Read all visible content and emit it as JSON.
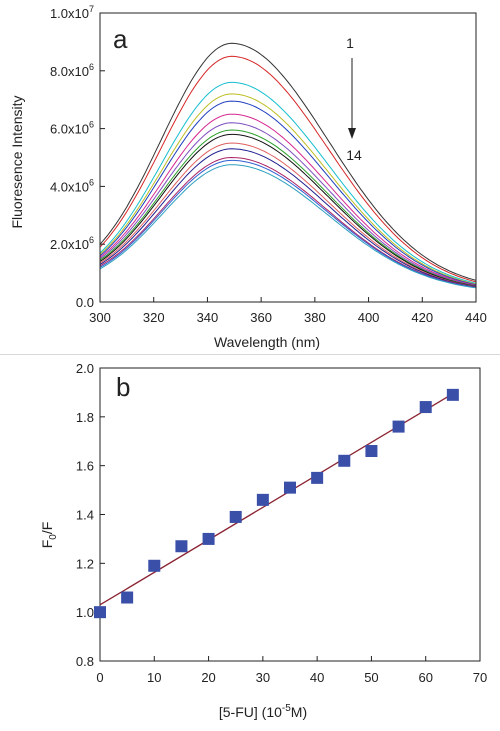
{
  "chart_data": [
    {
      "panel_label": "a",
      "type": "line",
      "xlabel": "Wavelength (nm)",
      "ylabel": "Fluoresence Intensity",
      "xlim": [
        300,
        440
      ],
      "ylim": [
        0,
        10000000
      ],
      "xticks": [
        300,
        320,
        340,
        360,
        380,
        400,
        420,
        440
      ],
      "yticks": [
        {
          "value": 0,
          "mant": "0.0",
          "exp": ""
        },
        {
          "value": 2000000,
          "mant": "2.0x10",
          "exp": "6"
        },
        {
          "value": 4000000,
          "mant": "4.0x10",
          "exp": "6"
        },
        {
          "value": 6000000,
          "mant": "6.0x10",
          "exp": "6"
        },
        {
          "value": 8000000,
          "mant": "8.0x10",
          "exp": "6"
        },
        {
          "value": 10000000,
          "mant": "1.0x10",
          "exp": "7"
        }
      ],
      "annotation_start": "1",
      "annotation_end": "14",
      "peak_wavelength": 349,
      "series": [
        {
          "color": "#333333",
          "peak": 8950000,
          "end": 750000,
          "start": 2000000
        },
        {
          "color": "#d62728",
          "peak": 8500000,
          "end": 700000,
          "start": 1900000
        },
        {
          "color": "#17becf",
          "peak": 7600000,
          "end": 650000,
          "start": 1700000
        },
        {
          "color": "#bcbd22",
          "peak": 7200000,
          "end": 620000,
          "start": 1650000
        },
        {
          "color": "#1f3fbf",
          "peak": 6950000,
          "end": 600000,
          "start": 1600000
        },
        {
          "color": "#d62790",
          "peak": 6500000,
          "end": 580000,
          "start": 1550000
        },
        {
          "color": "#7f4fbf",
          "peak": 6200000,
          "end": 560000,
          "start": 1500000
        },
        {
          "color": "#2ca02c",
          "peak": 5950000,
          "end": 550000,
          "start": 1450000
        },
        {
          "color": "#111111",
          "peak": 5800000,
          "end": 540000,
          "start": 1400000
        },
        {
          "color": "#e06060",
          "peak": 5500000,
          "end": 530000,
          "start": 1350000
        },
        {
          "color": "#1f1f8f",
          "peak": 5300000,
          "end": 520000,
          "start": 1300000
        },
        {
          "color": "#aa2266",
          "peak": 5000000,
          "end": 510000,
          "start": 1250000
        },
        {
          "color": "#3060d0",
          "peak": 4900000,
          "end": 500000,
          "start": 1200000
        },
        {
          "color": "#30a0c0",
          "peak": 4750000,
          "end": 490000,
          "start": 1150000
        }
      ]
    },
    {
      "panel_label": "b",
      "type": "scatter",
      "xlabel_main": "[5-FU]  (10",
      "xlabel_sup": "-5",
      "xlabel_tail": "M)",
      "ylabel_main": "F",
      "ylabel_sub": "0",
      "ylabel_tail": "/F",
      "xlim": [
        0,
        70
      ],
      "ylim": [
        0.8,
        2.0
      ],
      "xticks": [
        "0",
        "10",
        "20",
        "30",
        "40",
        "50",
        "60",
        "70"
      ],
      "yticks": [
        "0.8",
        "1.0",
        "1.2",
        "1.4",
        "1.6",
        "1.8",
        "2.0"
      ],
      "marker_color": "#3a4fa8",
      "fit_color": "#8b2331",
      "points": [
        {
          "x": 0,
          "y": 1.0
        },
        {
          "x": 5,
          "y": 1.06
        },
        {
          "x": 10,
          "y": 1.19
        },
        {
          "x": 15,
          "y": 1.27
        },
        {
          "x": 20,
          "y": 1.3
        },
        {
          "x": 25,
          "y": 1.39
        },
        {
          "x": 30,
          "y": 1.46
        },
        {
          "x": 35,
          "y": 1.51
        },
        {
          "x": 40,
          "y": 1.55
        },
        {
          "x": 45,
          "y": 1.62
        },
        {
          "x": 50,
          "y": 1.66
        },
        {
          "x": 55,
          "y": 1.76
        },
        {
          "x": 60,
          "y": 1.84
        },
        {
          "x": 65,
          "y": 1.89
        }
      ],
      "fit_line": {
        "x": [
          0,
          65
        ],
        "y": [
          1.03,
          1.895
        ]
      }
    }
  ]
}
